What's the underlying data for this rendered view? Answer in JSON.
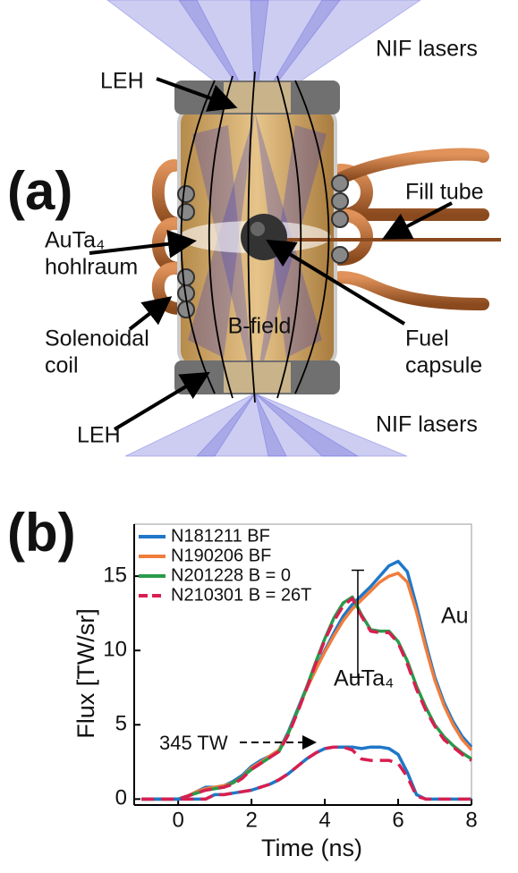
{
  "diagram": {
    "panel_label": "(a)",
    "labels": [
      {
        "lines": [
          "NIF lasers"
        ]
      },
      {
        "lines": [
          "LEH"
        ]
      },
      {
        "lines": [
          "Fill tube"
        ]
      },
      {
        "lines": [
          "AuTa₄",
          "hohlraum"
        ]
      },
      {
        "lines": [
          "Solenoidal",
          "coil"
        ]
      },
      {
        "lines": [
          "B-field"
        ]
      },
      {
        "lines": [
          "Fuel",
          "capsule"
        ]
      },
      {
        "lines": [
          "LEH"
        ]
      },
      {
        "lines": [
          "NIF lasers"
        ]
      }
    ]
  },
  "chart_data": {
    "type": "line",
    "panel_label": "(b)",
    "x_label": "Time (ns)",
    "y_label": "Flux [TW/sr]",
    "x": [
      -1,
      -0.75,
      -0.5,
      -0.25,
      0,
      0.25,
      0.5,
      0.75,
      1,
      1.25,
      1.5,
      1.75,
      2,
      2.25,
      2.5,
      2.75,
      3,
      3.25,
      3.5,
      3.75,
      4,
      4.25,
      4.5,
      4.75,
      5,
      5.25,
      5.5,
      5.75,
      6,
      6.25,
      6.5,
      6.75,
      7,
      7.25,
      7.5,
      7.75,
      8
    ],
    "xlim": [
      -1.2,
      8
    ],
    "xticks": [
      0,
      2,
      4,
      6,
      8
    ],
    "ylim": [
      -0.4,
      18.5
    ],
    "yticks": [
      0,
      5,
      10,
      15
    ],
    "legend": "upper left",
    "series": [
      {
        "name": "N181211 BF",
        "color": "#1f77c8",
        "linestyle": "solid",
        "values": [
          0,
          0,
          0,
          0,
          0,
          0.2,
          0.5,
          0.8,
          0.8,
          0.9,
          1.2,
          1.6,
          2.2,
          2.6,
          2.9,
          3.3,
          4.5,
          6,
          7.5,
          8.8,
          10,
          11.2,
          12.3,
          13.1,
          13.7,
          14.3,
          15,
          15.7,
          16,
          15.3,
          13,
          10.5,
          8.2,
          6.5,
          5.2,
          4.2,
          3.5
        ]
      },
      {
        "name": "N190206 BF",
        "color": "#f07d3c",
        "linestyle": "solid",
        "values": [
          0,
          0,
          0,
          0,
          0,
          0.2,
          0.5,
          0.7,
          0.8,
          0.9,
          1.1,
          1.5,
          2.1,
          2.5,
          2.9,
          3.3,
          4.4,
          5.9,
          7.4,
          8.7,
          9.9,
          11,
          12,
          12.8,
          13.4,
          14,
          14.6,
          15,
          15.2,
          14.6,
          12.6,
          10.2,
          8,
          6.3,
          5,
          4,
          3.3
        ]
      },
      {
        "name": "N201228 B = 0",
        "color": "#2a9a4a",
        "linestyle": "solid",
        "values": [
          0,
          0,
          0,
          0,
          0,
          0.2,
          0.4,
          0.6,
          0.7,
          0.8,
          1.1,
          1.5,
          2,
          2.4,
          2.8,
          3.2,
          4.4,
          5.9,
          7.5,
          9.2,
          10.8,
          12.2,
          13.2,
          13.6,
          12.4,
          11.4,
          11.3,
          11.3,
          10.6,
          9.3,
          7.6,
          6.2,
          5,
          4.2,
          3.6,
          3.1,
          2.7
        ]
      },
      {
        "name": "N210301 B = 26T",
        "color": "#d81e50",
        "linestyle": "dashed",
        "values": [
          0,
          0,
          0,
          0,
          0,
          0.2,
          0.4,
          0.6,
          0.7,
          0.8,
          1,
          1.4,
          2,
          2.4,
          2.8,
          3.2,
          4.3,
          5.8,
          7.4,
          9.1,
          10.7,
          12,
          13,
          13.5,
          12.3,
          11.3,
          11.2,
          11.2,
          10.5,
          9.1,
          7.4,
          6,
          4.9,
          4,
          3.5,
          3,
          2.6
        ]
      },
      {
        "color": "#1f77c8",
        "linestyle": "solid",
        "values": [
          0,
          0,
          0,
          0,
          0,
          0,
          0,
          0,
          0.3,
          0.3,
          0.4,
          0.5,
          0.6,
          0.8,
          1,
          1.3,
          1.7,
          2.2,
          2.7,
          3.1,
          3.4,
          3.5,
          3.5,
          3.5,
          3.4,
          3.5,
          3.5,
          3.4,
          3,
          1.8,
          0.3,
          0,
          0,
          0,
          0,
          0,
          0
        ]
      },
      {
        "color": "#d81e50",
        "linestyle": "dashed",
        "values": [
          0,
          0,
          0,
          0,
          0,
          0,
          0,
          0,
          0.3,
          0.3,
          0.4,
          0.5,
          0.6,
          0.8,
          1,
          1.3,
          1.7,
          2.2,
          2.7,
          3.1,
          3.4,
          3.5,
          3.5,
          3.3,
          2.7,
          2.6,
          2.6,
          2.6,
          2.4,
          1.5,
          0.2,
          0,
          0,
          0,
          0,
          0,
          0
        ]
      }
    ],
    "annotations": {
      "au": "Au",
      "auta": "AuTa₄",
      "power": "345 TW",
      "error_bar": {
        "x": 4.9,
        "value": 11.8,
        "error": 3.6
      }
    }
  }
}
